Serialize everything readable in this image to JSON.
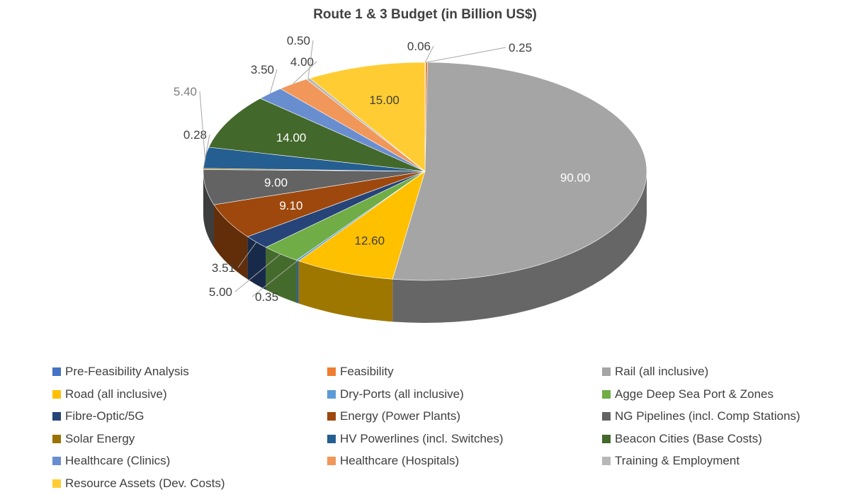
{
  "chart_data": {
    "type": "pie",
    "title": "Route 1 & 3 Budget (in Billion US$)",
    "slices": [
      {
        "name": "Pre-Feasibility Analysis",
        "value": 0.06,
        "label": "0.06",
        "color": "#4472C4"
      },
      {
        "name": "Feasibility",
        "value": 0.25,
        "label": "0.25",
        "color": "#ED7D31"
      },
      {
        "name": "Rail (all inclusive)",
        "value": 90.0,
        "label": "90.00",
        "color": "#A5A5A5"
      },
      {
        "name": "Road (all inclusive)",
        "value": 12.6,
        "label": "12.60",
        "color": "#FFC000"
      },
      {
        "name": "Dry-Ports (all inclusive)",
        "value": 0.35,
        "label": "0.35",
        "color": "#5B9BD5"
      },
      {
        "name": "Agge Deep Sea Port & Zones",
        "value": 5.0,
        "label": "5.00",
        "color": "#70AD47"
      },
      {
        "name": "Fibre-Optic/5G",
        "value": 3.51,
        "label": "3.51",
        "color": "#264478"
      },
      {
        "name": "Energy (Power Plants)",
        "value": 9.1,
        "label": "9.10",
        "color": "#9E480E"
      },
      {
        "name": "NG Pipelines (incl. Comp Stations)",
        "value": 9.0,
        "label": "9.00",
        "color": "#636363"
      },
      {
        "name": "Solar Energy",
        "value": 0.28,
        "label": "0.28",
        "color": "#997300"
      },
      {
        "name": "HV Powerlines (incl. Switches)",
        "value": 5.4,
        "label": "5.40",
        "color": "#255E91"
      },
      {
        "name": "Beacon Cities (Base Costs)",
        "value": 14.0,
        "label": "14.00",
        "color": "#43682B"
      },
      {
        "name": "Healthcare (Clinics)",
        "value": 3.5,
        "label": "3.50",
        "color": "#698ED0"
      },
      {
        "name": "Healthcare (Hospitals)",
        "value": 4.0,
        "label": "4.00",
        "color": "#F1975A"
      },
      {
        "name": "Training & Employment",
        "value": 0.5,
        "label": "0.50",
        "color": "#B7B7B7"
      },
      {
        "name": "Resource Assets (Dev. Costs)",
        "value": 15.0,
        "label": "15.00",
        "color": "#FFCD33"
      }
    ],
    "legend_position": "bottom"
  }
}
